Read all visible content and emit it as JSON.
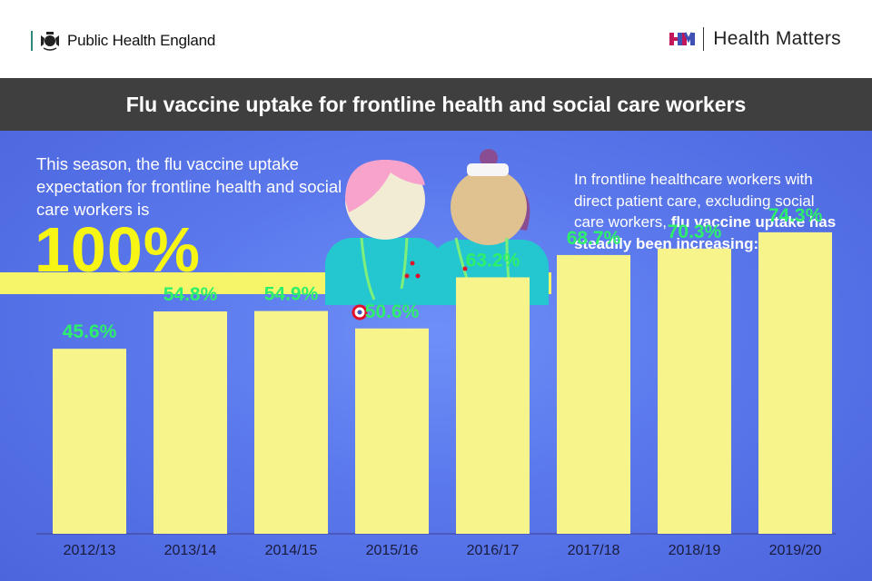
{
  "header": {
    "org_name": "Public Health England",
    "brand_name": "Health Matters",
    "crest_icon": "royal-crest-icon",
    "brand_icon": "health-matters-logo-icon"
  },
  "title": "Flu vaccine uptake for frontline health and social care workers",
  "intro": {
    "text": "This season, the flu vaccine uptake expectation for frontline health and social care workers is",
    "target": "100%"
  },
  "side_note": {
    "text": "In frontline healthcare workers with direct patient care, excluding social care workers,",
    "emphasis": "flu vaccine uptake has steadily been increasing:"
  },
  "colors": {
    "background": "#5a78ec",
    "bar": "#f7f48c",
    "value_label": "#2df06a",
    "accent_yellow": "#f6f514",
    "title_bar": "#3f3f3f"
  },
  "chart_data": {
    "type": "bar",
    "title": "Flu vaccine uptake for frontline health and social care workers",
    "xlabel": "",
    "ylabel": "",
    "categories": [
      "2012/13",
      "2013/14",
      "2014/15",
      "2015/16",
      "2016/17",
      "2017/18",
      "2018/19",
      "2019/20"
    ],
    "values": [
      45.6,
      54.8,
      54.9,
      50.6,
      63.2,
      68.7,
      70.3,
      74.3
    ],
    "value_labels": [
      "45.6%",
      "54.8%",
      "54.9%",
      "50.6%",
      "63.2%",
      "68.7%",
      "70.3%",
      "74.3%"
    ],
    "ylim": [
      0,
      100
    ],
    "grid": false,
    "legend": "none"
  }
}
